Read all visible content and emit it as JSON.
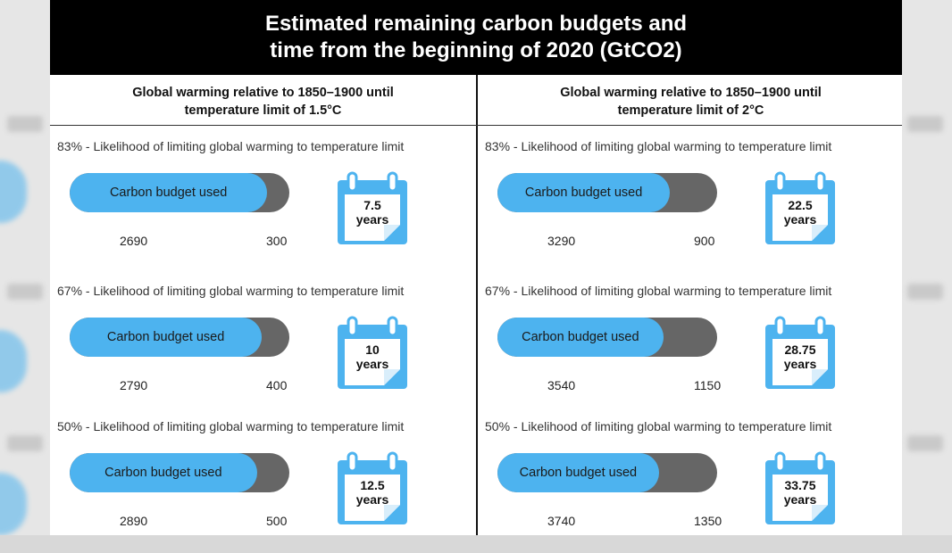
{
  "title": "Estimated remaining carbon budgets and\ntime from the beginning of 2020 (GtCO2)",
  "columns": [
    {
      "header": "Global warming relative to 1850–1900 until\ntemperature limit of 1.5°C",
      "scenarios": [
        {
          "likelihood": "83% - Likelihood of limiting global warming to temperature limit",
          "bar_label": "Carbon budget used",
          "used": "2690",
          "remaining": "300",
          "years_value": "7.5",
          "years_unit": "years"
        },
        {
          "likelihood": "67% - Likelihood of limiting global warming to temperature limit",
          "bar_label": "Carbon budget used",
          "used": "2790",
          "remaining": "400",
          "years_value": "10",
          "years_unit": "years"
        },
        {
          "likelihood": "50% - Likelihood of limiting global warming to temperature limit",
          "bar_label": "Carbon budget used",
          "used": "2890",
          "remaining": "500",
          "years_value": "12.5",
          "years_unit": "years"
        }
      ]
    },
    {
      "header": "Global warming relative to 1850–1900 until\ntemperature limit of 2°C",
      "scenarios": [
        {
          "likelihood": "83% - Likelihood of limiting global warming to temperature limit",
          "bar_label": "Carbon budget used",
          "used": "3290",
          "remaining": "900",
          "years_value": "22.5",
          "years_unit": "years"
        },
        {
          "likelihood": "67% - Likelihood of limiting global warming to temperature limit",
          "bar_label": "Carbon budget used",
          "used": "3540",
          "remaining": "1150",
          "years_value": "28.75",
          "years_unit": "years"
        },
        {
          "likelihood": "50% - Likelihood of limiting global warming to temperature limit",
          "bar_label": "Carbon budget used",
          "used": "3740",
          "remaining": "1350",
          "years_value": "33.75",
          "years_unit": "years"
        }
      ]
    }
  ],
  "chart_data": {
    "type": "bar",
    "title": "Estimated remaining carbon budgets and time from the beginning of 2020 (GtCO2)",
    "categories": [
      "1.5°C 83%",
      "1.5°C 67%",
      "1.5°C 50%",
      "2°C 83%",
      "2°C 67%",
      "2°C 50%"
    ],
    "series": [
      {
        "name": "Carbon budget used",
        "values": [
          2690,
          2790,
          2890,
          3290,
          3540,
          3740
        ]
      },
      {
        "values": [
          300,
          400,
          500,
          900,
          1150,
          1350
        ]
      }
    ],
    "years": [
      7.5,
      10,
      12.5,
      22.5,
      28.75,
      33.75
    ],
    "stacked": true,
    "orientation": "horizontal"
  },
  "colors": {
    "used": "#4db3ef",
    "remaining": "#666666",
    "header_bg": "#000000",
    "header_text": "#ffffff"
  },
  "icons": {
    "calendar": "calendar-icon"
  }
}
